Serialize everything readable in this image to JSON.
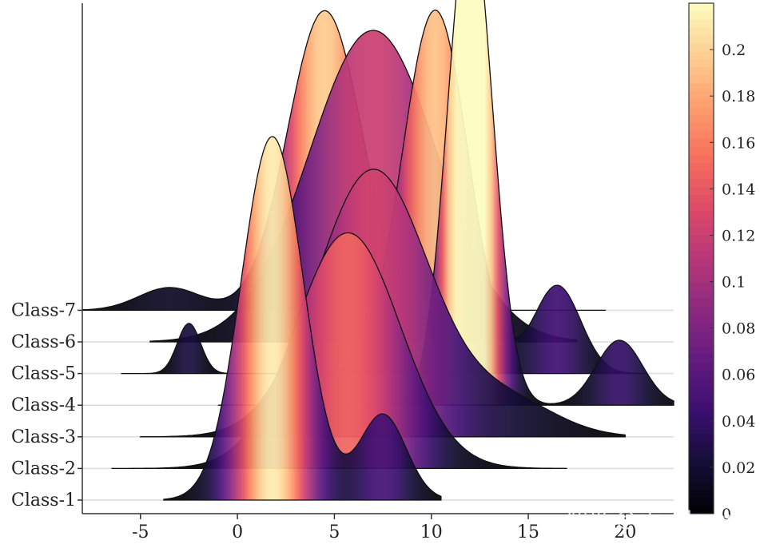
{
  "chart_data": {
    "type": "ridgeline",
    "title": "",
    "xlabel": "",
    "ylabel": "",
    "xlim": [
      -8,
      22.5
    ],
    "xticks": [
      -5,
      0,
      5,
      10,
      15,
      20
    ],
    "grid": "horizontal baselines per class",
    "colormap": "magma",
    "colorbar": {
      "position": "right",
      "range": [
        0,
        0.22
      ],
      "ticks": [
        0,
        0.02,
        0.04,
        0.06,
        0.08,
        0.1,
        0.12,
        0.14,
        0.16,
        0.18,
        0.2
      ]
    },
    "series": [
      {
        "name": "Class-1",
        "x_range": [
          -3.8,
          10.5
        ],
        "components": [
          {
            "w": 0.85,
            "mu": 1.8,
            "sigma": 1.6
          },
          {
            "w": 0.15,
            "mu": 7.5,
            "sigma": 1.2
          }
        ]
      },
      {
        "name": "Class-2",
        "x_range": [
          -6.5,
          17
        ],
        "components": [
          {
            "w": 1.0,
            "mu": 5.7,
            "sigma": 2.7
          }
        ]
      },
      {
        "name": "Class-3",
        "x_range": [
          -5,
          20
        ],
        "components": [
          {
            "w": 0.9,
            "mu": 7.0,
            "sigma": 2.9
          },
          {
            "w": 0.1,
            "mu": 14,
            "sigma": 2.5
          }
        ]
      },
      {
        "name": "Class-4",
        "x_range": [
          -1,
          22.5
        ],
        "components": [
          {
            "w": 0.88,
            "mu": 12.0,
            "sigma": 1.15
          },
          {
            "w": 0.12,
            "mu": 19.7,
            "sigma": 1.2
          }
        ]
      },
      {
        "name": "Class-5",
        "x_range": [
          -6,
          21
        ],
        "components": [
          {
            "w": 0.04,
            "mu": -2.5,
            "sigma": 0.6
          },
          {
            "w": 0.82,
            "mu": 10.2,
            "sigma": 1.7
          },
          {
            "w": 0.14,
            "mu": 16.5,
            "sigma": 1.2
          }
        ]
      },
      {
        "name": "Class-6",
        "x_range": [
          -4.5,
          17.5
        ],
        "components": [
          {
            "w": 1.0,
            "mu": 7.0,
            "sigma": 3.3
          }
        ]
      },
      {
        "name": "Class-7",
        "x_range": [
          -8,
          19
        ],
        "components": [
          {
            "w": 0.06,
            "mu": -3.5,
            "sigma": 1.6
          },
          {
            "w": 0.94,
            "mu": 4.5,
            "sigma": 1.9
          }
        ]
      }
    ]
  },
  "watermark": "知乎 @slandarer"
}
